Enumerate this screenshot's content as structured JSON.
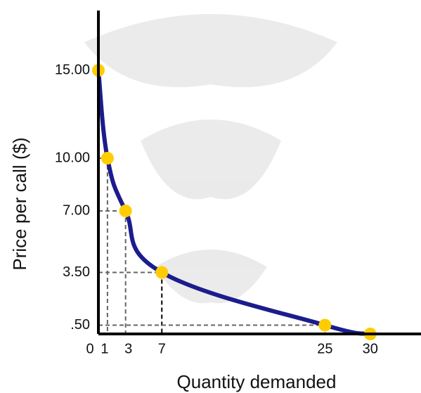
{
  "chart_data": {
    "type": "line",
    "x_label": "Quantity demanded",
    "y_label": "Price per call ($)",
    "x": [
      0,
      1,
      3,
      7,
      25,
      30
    ],
    "series": [
      {
        "color": "#1c1c8e",
        "marker_color": "#ffcc00",
        "values": [
          15,
          10,
          7,
          3.5,
          0.5,
          0
        ]
      }
    ],
    "xlim": [
      0,
      35.6
    ],
    "ylim": [
      0,
      18.4
    ],
    "xticks": [
      0,
      1,
      3,
      7,
      25,
      30
    ],
    "yticks": [
      {
        "value": 0.5,
        "label": ".50"
      },
      {
        "value": 3.5,
        "label": "3.50"
      },
      {
        "value": 7,
        "label": "7.00"
      },
      {
        "value": 10,
        "label": "10.00"
      },
      {
        "value": 15,
        "label": "15.00"
      }
    ]
  }
}
